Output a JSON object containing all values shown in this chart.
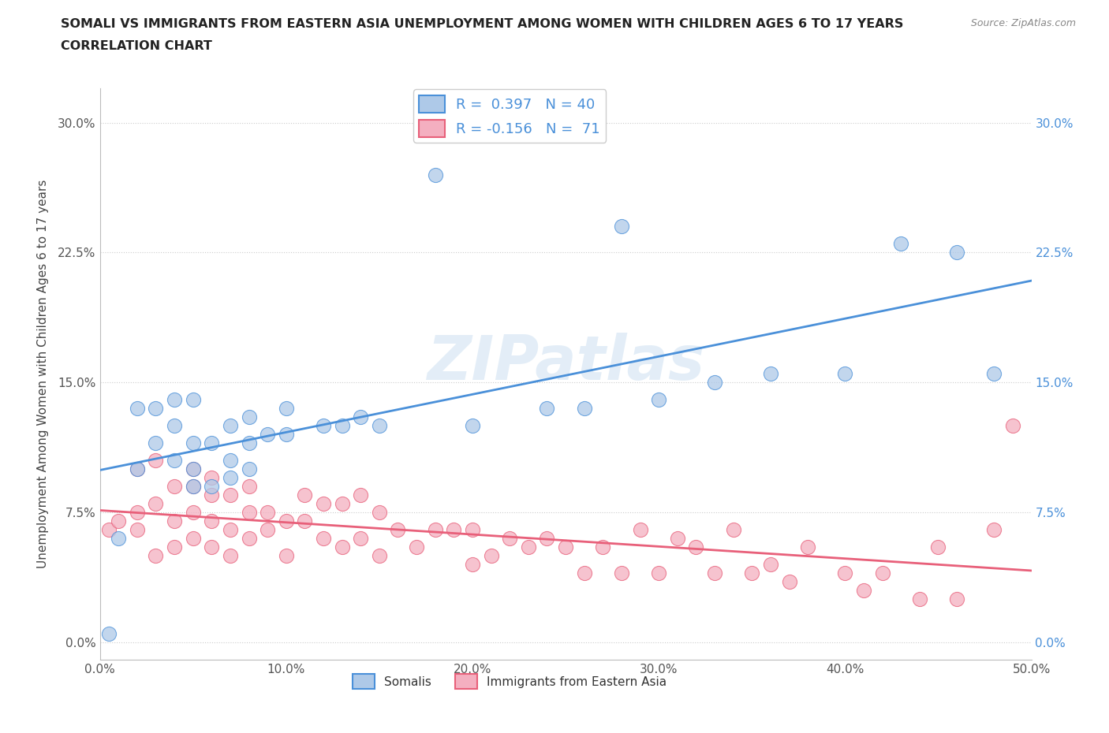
{
  "title_line1": "SOMALI VS IMMIGRANTS FROM EASTERN ASIA UNEMPLOYMENT AMONG WOMEN WITH CHILDREN AGES 6 TO 17 YEARS",
  "title_line2": "CORRELATION CHART",
  "source": "Source: ZipAtlas.com",
  "ylabel": "Unemployment Among Women with Children Ages 6 to 17 years",
  "xlim": [
    0.0,
    0.5
  ],
  "ylim": [
    -0.01,
    0.32
  ],
  "yticks": [
    0.0,
    0.075,
    0.15,
    0.225,
    0.3
  ],
  "ytick_labels": [
    "0.0%",
    "7.5%",
    "15.0%",
    "22.5%",
    "30.0%"
  ],
  "xticks": [
    0.0,
    0.1,
    0.2,
    0.3,
    0.4,
    0.5
  ],
  "xtick_labels": [
    "0.0%",
    "10.0%",
    "20.0%",
    "30.0%",
    "40.0%",
    "50.0%"
  ],
  "somali_color": "#aec9e8",
  "eastern_asia_color": "#f4afc0",
  "somali_line_color": "#4a90d9",
  "eastern_asia_line_color": "#e8607a",
  "r_somali": 0.397,
  "n_somali": 40,
  "r_eastern_asia": -0.156,
  "n_eastern_asia": 71,
  "watermark": "ZIPatlas",
  "somali_x": [
    0.005,
    0.01,
    0.02,
    0.02,
    0.03,
    0.03,
    0.04,
    0.04,
    0.04,
    0.05,
    0.05,
    0.05,
    0.05,
    0.06,
    0.06,
    0.07,
    0.07,
    0.07,
    0.08,
    0.08,
    0.08,
    0.09,
    0.1,
    0.1,
    0.12,
    0.13,
    0.14,
    0.15,
    0.18,
    0.2,
    0.24,
    0.26,
    0.28,
    0.3,
    0.33,
    0.36,
    0.4,
    0.43,
    0.46,
    0.48
  ],
  "somali_y": [
    0.005,
    0.06,
    0.1,
    0.135,
    0.115,
    0.135,
    0.105,
    0.125,
    0.14,
    0.09,
    0.1,
    0.115,
    0.14,
    0.09,
    0.115,
    0.095,
    0.105,
    0.125,
    0.1,
    0.115,
    0.13,
    0.12,
    0.12,
    0.135,
    0.125,
    0.125,
    0.13,
    0.125,
    0.27,
    0.125,
    0.135,
    0.135,
    0.24,
    0.14,
    0.15,
    0.155,
    0.155,
    0.23,
    0.225,
    0.155
  ],
  "eastern_asia_x": [
    0.005,
    0.01,
    0.02,
    0.02,
    0.02,
    0.03,
    0.03,
    0.03,
    0.04,
    0.04,
    0.04,
    0.05,
    0.05,
    0.05,
    0.05,
    0.06,
    0.06,
    0.06,
    0.06,
    0.07,
    0.07,
    0.07,
    0.08,
    0.08,
    0.08,
    0.09,
    0.09,
    0.1,
    0.1,
    0.11,
    0.11,
    0.12,
    0.12,
    0.13,
    0.13,
    0.14,
    0.14,
    0.15,
    0.15,
    0.16,
    0.17,
    0.18,
    0.19,
    0.2,
    0.2,
    0.21,
    0.22,
    0.23,
    0.24,
    0.25,
    0.26,
    0.27,
    0.28,
    0.29,
    0.3,
    0.31,
    0.32,
    0.33,
    0.34,
    0.35,
    0.36,
    0.37,
    0.38,
    0.4,
    0.41,
    0.42,
    0.44,
    0.45,
    0.46,
    0.48,
    0.49
  ],
  "eastern_asia_y": [
    0.065,
    0.07,
    0.065,
    0.075,
    0.1,
    0.05,
    0.08,
    0.105,
    0.055,
    0.07,
    0.09,
    0.06,
    0.075,
    0.09,
    0.1,
    0.055,
    0.07,
    0.085,
    0.095,
    0.05,
    0.065,
    0.085,
    0.06,
    0.075,
    0.09,
    0.065,
    0.075,
    0.05,
    0.07,
    0.07,
    0.085,
    0.06,
    0.08,
    0.055,
    0.08,
    0.06,
    0.085,
    0.05,
    0.075,
    0.065,
    0.055,
    0.065,
    0.065,
    0.045,
    0.065,
    0.05,
    0.06,
    0.055,
    0.06,
    0.055,
    0.04,
    0.055,
    0.04,
    0.065,
    0.04,
    0.06,
    0.055,
    0.04,
    0.065,
    0.04,
    0.045,
    0.035,
    0.055,
    0.04,
    0.03,
    0.04,
    0.025,
    0.055,
    0.025,
    0.065,
    0.125
  ]
}
